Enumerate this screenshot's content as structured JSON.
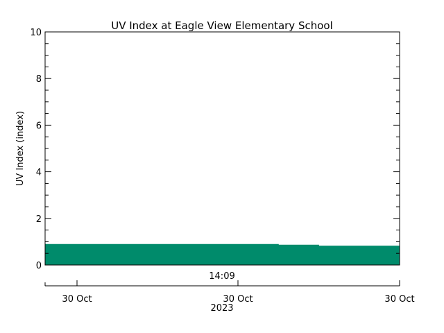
{
  "chart_data": {
    "type": "area",
    "title": "UV Index at Eagle View Elementary School",
    "ylabel": "UV Index (index)",
    "ylim": [
      0,
      10
    ],
    "y_ticks": [
      0,
      2,
      4,
      6,
      8,
      10
    ],
    "y_minor_step": 0.5,
    "fill_color": "#008b6b",
    "grid": false,
    "legend": "none",
    "series": [
      {
        "x": [
          "30 Oct 13:13",
          "30 Oct 14:09",
          "30 Oct 14:40",
          "30 Oct 14:55",
          "30 Oct 15:25"
        ],
        "values": [
          0.9,
          0.9,
          0.87,
          0.83,
          0.83
        ]
      }
    ],
    "x_axis": {
      "time_label": "14:09",
      "date_labels": [
        "30 Oct",
        "30 Oct",
        "30 Oct"
      ],
      "year_label": "2023"
    }
  }
}
